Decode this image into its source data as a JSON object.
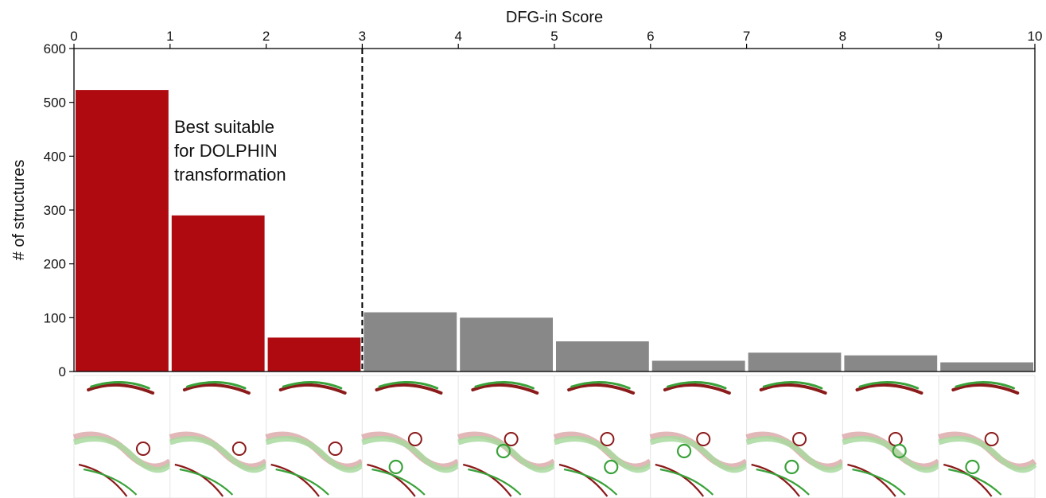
{
  "chart_data": {
    "type": "bar",
    "title": "",
    "xlabel": "DFG-in Score",
    "ylabel": "# of structures",
    "x_ticks": [
      "0",
      "1",
      "2",
      "3",
      "4",
      "5",
      "6",
      "7",
      "8",
      "9",
      "10"
    ],
    "y_ticks": [
      "0",
      "100",
      "200",
      "300",
      "400",
      "500",
      "600"
    ],
    "xlim": [
      0,
      10
    ],
    "ylim": [
      0,
      600
    ],
    "grid": false,
    "x_axis_position": "top",
    "bins": [
      {
        "from": 0,
        "to": 1,
        "value": 523
      },
      {
        "from": 1,
        "to": 2,
        "value": 290
      },
      {
        "from": 2,
        "to": 3,
        "value": 63
      },
      {
        "from": 3,
        "to": 4,
        "value": 110
      },
      {
        "from": 4,
        "to": 5,
        "value": 100
      },
      {
        "from": 5,
        "to": 6,
        "value": 56
      },
      {
        "from": 6,
        "to": 7,
        "value": 20
      },
      {
        "from": 7,
        "to": 8,
        "value": 35
      },
      {
        "from": 8,
        "to": 9,
        "value": 30
      },
      {
        "from": 9,
        "to": 10,
        "value": 17
      }
    ],
    "threshold": 3,
    "highlight_color": "#ae0a10",
    "other_color": "#888888",
    "annotation_lines": [
      "Best suitable",
      "for DOLPHIN",
      "transformation"
    ]
  },
  "thumbnails": {
    "count": 10,
    "ribbon_red": "#8b1a1a",
    "ribbon_green": "#3aa23a"
  }
}
